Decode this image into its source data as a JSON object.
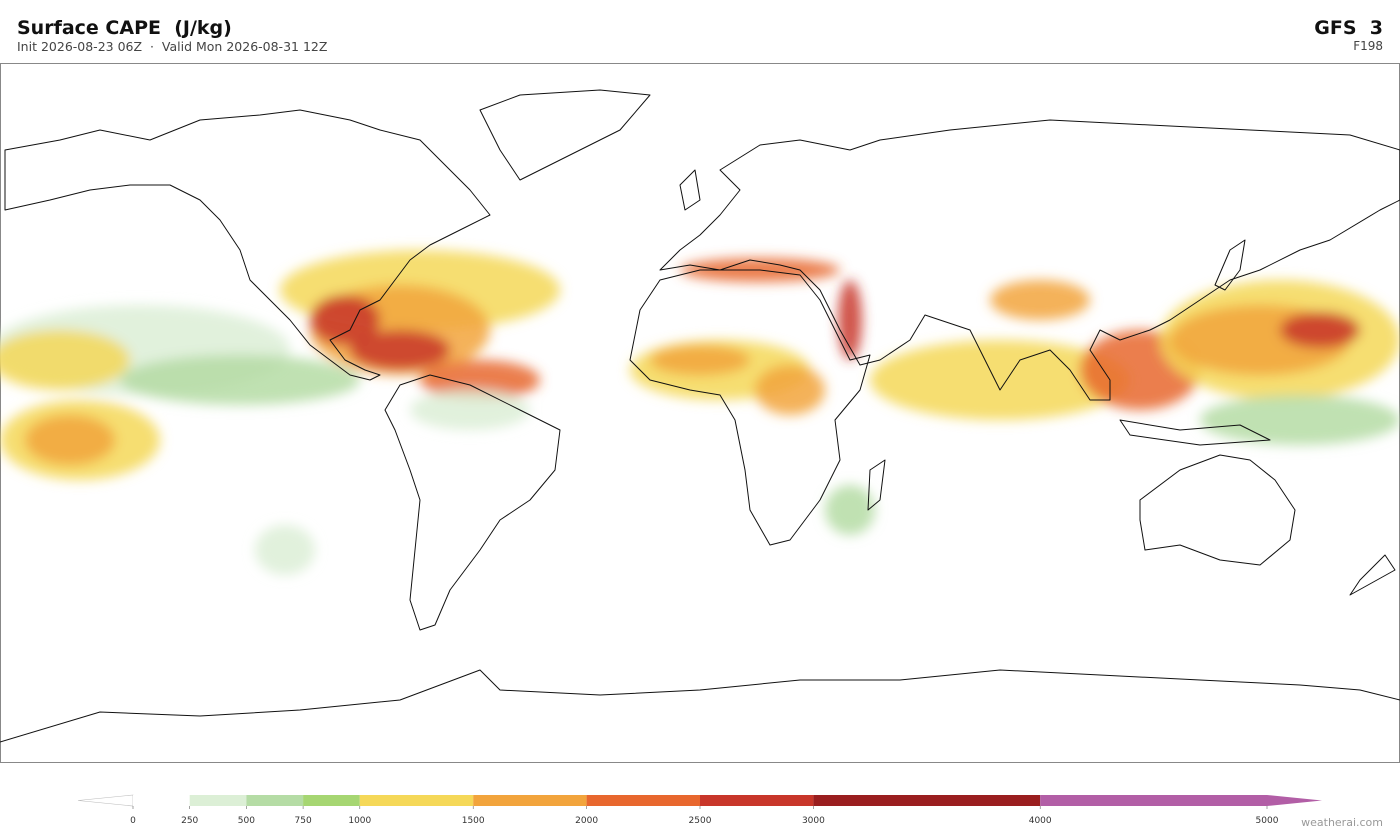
{
  "header": {
    "title": "Surface CAPE  (J/kg)",
    "subtitle": "Init 2026-08-23 06Z  ·  Valid Mon 2026-08-31 12Z",
    "model": "GFS  3",
    "forecast_hour": "F198"
  },
  "colorbar": {
    "ticks": [
      0,
      250,
      500,
      750,
      1000,
      1500,
      2000,
      2500,
      3000,
      4000,
      5000
    ],
    "colors": [
      "#ffffff",
      "#dcefd6",
      "#b5dca5",
      "#a6d672",
      "#f5d858",
      "#f2a43c",
      "#e8672e",
      "#c8362a",
      "#9a1e1f",
      "#b25ea6"
    ],
    "extend_min_color": "#ffffff",
    "extend_max_color": "#b25ea6"
  },
  "watermark": "weatherai.com"
}
